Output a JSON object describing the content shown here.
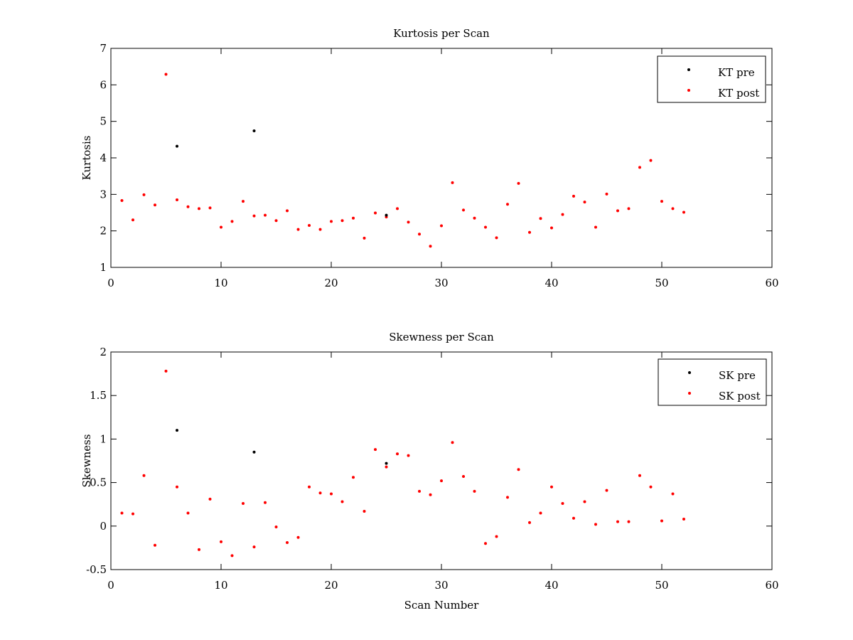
{
  "chart_data": [
    {
      "type": "scatter",
      "title": "Kurtosis per Scan",
      "xlabel": "",
      "ylabel": "Kurtosis",
      "xlim": [
        0,
        60
      ],
      "ylim": [
        1,
        7
      ],
      "xticks": [
        0,
        10,
        20,
        30,
        40,
        50,
        60
      ],
      "yticks": [
        1,
        2,
        3,
        4,
        5,
        6,
        7
      ],
      "grid": false,
      "legend_position": "top-right",
      "series": [
        {
          "name": "KT pre",
          "color": "#000000",
          "x": [
            6,
            13,
            25
          ],
          "y": [
            4.32,
            4.74,
            2.43
          ]
        },
        {
          "name": "KT post",
          "color": "#ff0000",
          "x": [
            1,
            2,
            3,
            4,
            5,
            6,
            7,
            8,
            9,
            10,
            11,
            12,
            13,
            14,
            15,
            16,
            17,
            18,
            19,
            20,
            21,
            22,
            23,
            24,
            25,
            26,
            27,
            28,
            29,
            30,
            31,
            32,
            33,
            34,
            35,
            36,
            37,
            38,
            39,
            40,
            41,
            42,
            43,
            44,
            45,
            46,
            47,
            48,
            49,
            50,
            51,
            52
          ],
          "y": [
            2.83,
            2.3,
            2.99,
            2.71,
            6.29,
            2.85,
            2.66,
            2.61,
            2.63,
            2.1,
            2.26,
            2.81,
            2.41,
            2.43,
            2.28,
            2.55,
            2.04,
            2.15,
            2.04,
            2.26,
            2.28,
            2.35,
            1.8,
            2.49,
            2.38,
            2.61,
            2.24,
            1.91,
            1.58,
            2.14,
            3.32,
            2.57,
            2.35,
            2.1,
            1.81,
            2.73,
            3.3,
            1.96,
            2.34,
            2.08,
            2.45,
            2.95,
            2.79,
            2.1,
            3.01,
            2.55,
            2.61,
            3.74,
            3.93,
            2.81,
            2.61,
            2.51
          ]
        }
      ]
    },
    {
      "type": "scatter",
      "title": "Skewness per Scan",
      "xlabel": "Scan Number",
      "ylabel": "Skewness",
      "xlim": [
        0,
        60
      ],
      "ylim": [
        -0.5,
        2
      ],
      "xticks": [
        0,
        10,
        20,
        30,
        40,
        50,
        60
      ],
      "yticks": [
        -0.5,
        0,
        0.5,
        1,
        1.5,
        2
      ],
      "grid": false,
      "legend_position": "top-right",
      "series": [
        {
          "name": "SK pre",
          "color": "#000000",
          "x": [
            6,
            13,
            25
          ],
          "y": [
            1.1,
            0.85,
            0.72
          ]
        },
        {
          "name": "SK post",
          "color": "#ff0000",
          "x": [
            1,
            2,
            3,
            4,
            5,
            6,
            7,
            8,
            9,
            10,
            11,
            12,
            13,
            14,
            15,
            16,
            17,
            18,
            19,
            20,
            21,
            22,
            23,
            24,
            25,
            26,
            27,
            28,
            29,
            30,
            31,
            32,
            33,
            34,
            35,
            36,
            37,
            38,
            39,
            40,
            41,
            42,
            43,
            44,
            45,
            46,
            47,
            48,
            49,
            50,
            51,
            52
          ],
          "y": [
            0.15,
            0.14,
            0.58,
            -0.22,
            1.78,
            0.45,
            0.15,
            -0.27,
            0.31,
            -0.18,
            -0.34,
            0.26,
            -0.24,
            0.27,
            -0.01,
            -0.19,
            -0.13,
            0.45,
            0.38,
            0.37,
            0.28,
            0.56,
            0.17,
            0.88,
            0.68,
            0.83,
            0.81,
            0.4,
            0.36,
            0.52,
            0.96,
            0.57,
            0.4,
            -0.2,
            -0.12,
            0.33,
            0.65,
            0.04,
            0.15,
            0.45,
            0.26,
            0.09,
            0.28,
            0.02,
            0.41,
            0.05,
            0.05,
            0.58,
            0.45,
            0.06,
            0.37,
            0.08
          ]
        }
      ]
    }
  ]
}
